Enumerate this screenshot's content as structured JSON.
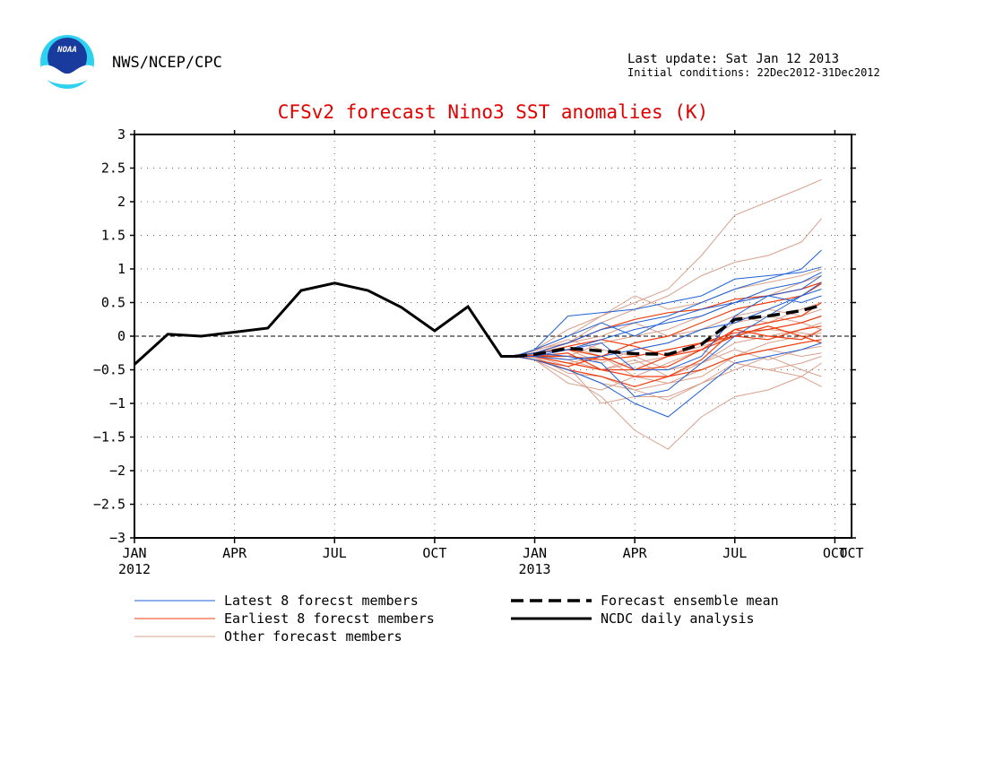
{
  "header": {
    "org": "NWS/NCEP/CPC",
    "logo_text": "NOAA",
    "last_update": "Last update: Sat Jan 12 2013",
    "initial_conditions": "Initial conditions: 22Dec2012-31Dec2012"
  },
  "chart_data": {
    "type": "line",
    "title": "CFSv2 forecast Nino3 SST anomalies (K)",
    "xlabel": "",
    "ylabel": "",
    "ylim": [
      -3,
      3
    ],
    "yticks": [
      "3",
      "2.5",
      "2",
      "1.5",
      "1",
      "0.5",
      "0",
      "-0.5",
      "-1",
      "-1.5",
      "-2",
      "-2.5",
      "-3"
    ],
    "xticks": [
      {
        "label": "JAN",
        "sub": "2012",
        "month": 0
      },
      {
        "label": "APR",
        "sub": "",
        "month": 3
      },
      {
        "label": "JUL",
        "sub": "",
        "month": 6
      },
      {
        "label": "OCT",
        "sub": "",
        "month": 9
      },
      {
        "label": "JAN",
        "sub": "2013",
        "month": 12
      },
      {
        "label": "APR",
        "sub": "",
        "month": 15
      },
      {
        "label": "JUL",
        "sub": "",
        "month": 18
      },
      {
        "label": "OCT",
        "sub": "",
        "month": 21
      }
    ],
    "xlim_months": [
      0,
      21.5
    ],
    "grid": true,
    "colors": {
      "latest": "#1f5fd6",
      "earliest": "#ee3e10",
      "other": "#d9a08c",
      "mean": "#000000",
      "analysis": "#000000",
      "title": "#e00000"
    },
    "legend": [
      {
        "label": "Latest 8 forecst members",
        "style": "latest"
      },
      {
        "label": "Earliest 8 forecst members",
        "style": "earliest"
      },
      {
        "label": "Other forecast members",
        "style": "other"
      },
      {
        "label": "Forecast ensemble mean",
        "style": "mean"
      },
      {
        "label": "NCDC daily analysis",
        "style": "analysis"
      }
    ],
    "forecast_months": [
      11.4,
      12,
      13,
      14,
      15,
      16,
      17,
      18,
      19,
      20,
      20.6
    ],
    "series": [
      {
        "name": "NCDC daily analysis",
        "months": [
          0,
          1,
          2,
          3,
          4,
          5,
          6,
          7,
          8,
          9,
          10,
          11,
          11.4
        ],
        "values": [
          -0.42,
          0.03,
          0.0,
          0.06,
          0.12,
          0.68,
          0.79,
          0.68,
          0.43,
          0.08,
          0.44,
          -0.3,
          -0.3
        ]
      },
      {
        "name": "Forecast ensemble mean",
        "values": [
          -0.3,
          -0.27,
          -0.18,
          -0.22,
          -0.26,
          -0.27,
          -0.12,
          0.25,
          0.3,
          0.38,
          0.46
        ]
      },
      {
        "group": "latest",
        "values": [
          -0.3,
          -0.2,
          0.3,
          0.35,
          0.4,
          0.5,
          0.6,
          0.85,
          0.9,
          0.95,
          1.03
        ]
      },
      {
        "group": "latest",
        "values": [
          -0.3,
          -0.25,
          -0.1,
          0.1,
          0.2,
          0.3,
          0.5,
          0.7,
          0.85,
          1.0,
          1.28
        ]
      },
      {
        "group": "latest",
        "values": [
          -0.3,
          -0.35,
          -0.5,
          -0.7,
          -1.0,
          -1.2,
          -0.8,
          -0.4,
          -0.3,
          -0.2,
          -0.1
        ]
      },
      {
        "group": "latest",
        "values": [
          -0.3,
          -0.3,
          -0.2,
          -0.1,
          -0.5,
          -0.5,
          -0.3,
          0.3,
          0.6,
          0.7,
          0.9
        ]
      },
      {
        "group": "latest",
        "values": [
          -0.3,
          -0.25,
          -0.3,
          -0.4,
          -0.9,
          -0.8,
          -0.4,
          0.0,
          0.3,
          0.6,
          0.8
        ]
      },
      {
        "group": "latest",
        "values": [
          -0.3,
          -0.2,
          0.0,
          0.2,
          0.0,
          0.25,
          0.4,
          0.5,
          0.6,
          0.5,
          0.6
        ]
      },
      {
        "group": "latest",
        "values": [
          -0.3,
          -0.3,
          -0.35,
          -0.3,
          -0.2,
          -0.1,
          0.1,
          0.2,
          0.4,
          0.6,
          0.7
        ]
      },
      {
        "group": "latest",
        "values": [
          -0.3,
          -0.25,
          -0.2,
          -0.05,
          0.1,
          0.2,
          0.3,
          0.5,
          0.7,
          0.8,
          0.95
        ]
      },
      {
        "group": "earliest",
        "values": [
          -0.3,
          -0.3,
          -0.4,
          -0.5,
          -0.5,
          -0.45,
          -0.2,
          0.1,
          0.2,
          0.3,
          0.5
        ]
      },
      {
        "group": "earliest",
        "values": [
          -0.3,
          -0.25,
          -0.1,
          0.1,
          0.25,
          0.35,
          0.4,
          0.55,
          0.6,
          0.7,
          0.8
        ]
      },
      {
        "group": "earliest",
        "values": [
          -0.3,
          -0.35,
          -0.45,
          -0.3,
          -0.5,
          -0.3,
          -0.1,
          0.0,
          -0.05,
          0.1,
          0.15
        ]
      },
      {
        "group": "earliest",
        "values": [
          -0.3,
          -0.3,
          -0.25,
          -0.5,
          -0.6,
          -0.6,
          -0.35,
          0.1,
          0.0,
          -0.05,
          0.1
        ]
      },
      {
        "group": "earliest",
        "values": [
          -0.3,
          -0.25,
          -0.2,
          -0.3,
          -0.1,
          0.0,
          0.2,
          0.4,
          0.5,
          0.6,
          0.78
        ]
      },
      {
        "group": "earliest",
        "values": [
          -0.3,
          -0.35,
          -0.5,
          -0.6,
          -0.75,
          -0.6,
          -0.5,
          -0.3,
          -0.2,
          -0.1,
          -0.05
        ]
      },
      {
        "group": "earliest",
        "values": [
          -0.3,
          -0.3,
          -0.3,
          -0.35,
          -0.3,
          -0.2,
          -0.1,
          0.05,
          0.1,
          0.2,
          0.3
        ]
      },
      {
        "group": "earliest",
        "values": [
          -0.3,
          -0.28,
          -0.15,
          -0.05,
          -0.15,
          -0.3,
          -0.2,
          0.0,
          0.15,
          0.0,
          -0.1
        ]
      },
      {
        "group": "other",
        "values": [
          -0.3,
          -0.2,
          0.0,
          0.3,
          0.5,
          0.7,
          1.2,
          1.8,
          2.0,
          2.2,
          2.33
        ]
      },
      {
        "group": "other",
        "values": [
          -0.3,
          -0.25,
          -0.1,
          0.2,
          0.4,
          0.6,
          0.9,
          1.1,
          1.2,
          1.4,
          1.75
        ]
      },
      {
        "group": "other",
        "values": [
          -0.3,
          -0.35,
          -0.6,
          -0.9,
          -1.4,
          -1.68,
          -1.2,
          -0.9,
          -0.8,
          -0.6,
          -0.4
        ]
      },
      {
        "group": "other",
        "values": [
          -0.3,
          -0.3,
          -0.45,
          -1.0,
          -0.9,
          -0.9,
          -0.7,
          -0.4,
          -0.5,
          -0.6,
          -0.75
        ]
      },
      {
        "group": "other",
        "values": [
          -0.3,
          -0.28,
          -0.35,
          -0.5,
          -0.4,
          -0.3,
          -0.1,
          0.2,
          0.3,
          0.2,
          0.1
        ]
      },
      {
        "group": "other",
        "values": [
          -0.3,
          -0.2,
          0.1,
          0.3,
          0.6,
          0.4,
          0.5,
          0.7,
          0.8,
          0.9,
          1.0
        ]
      },
      {
        "group": "other",
        "values": [
          -0.3,
          -0.32,
          -0.5,
          -0.7,
          -0.8,
          -0.95,
          -0.7,
          -0.5,
          -0.3,
          -0.5,
          -0.6
        ]
      },
      {
        "group": "other",
        "values": [
          -0.3,
          -0.25,
          -0.2,
          -0.4,
          -0.2,
          -0.1,
          0.1,
          0.3,
          0.2,
          0.4,
          0.5
        ]
      },
      {
        "group": "other",
        "values": [
          -0.3,
          -0.3,
          -0.4,
          -0.3,
          -0.6,
          -0.7,
          -0.6,
          -0.3,
          -0.2,
          -0.3,
          -0.25
        ]
      },
      {
        "group": "other",
        "values": [
          -0.3,
          -0.22,
          -0.05,
          -0.2,
          -0.3,
          -0.5,
          -0.4,
          -0.1,
          0.0,
          0.1,
          0.2
        ]
      },
      {
        "group": "other",
        "values": [
          -0.3,
          -0.35,
          -0.7,
          -0.8,
          -0.6,
          -0.4,
          -0.2,
          -0.4,
          -0.5,
          -0.4,
          -0.3
        ]
      },
      {
        "group": "other",
        "values": [
          -0.3,
          -0.27,
          -0.3,
          -0.1,
          0.0,
          0.1,
          0.3,
          0.5,
          0.6,
          0.8,
          0.9
        ]
      },
      {
        "group": "other",
        "values": [
          -0.3,
          -0.3,
          -0.55,
          -0.6,
          -0.8,
          -0.7,
          -0.5,
          -0.3,
          -0.1,
          0.0,
          0.05
        ]
      },
      {
        "group": "other",
        "values": [
          -0.3,
          -0.2,
          -0.1,
          0.0,
          0.2,
          0.0,
          0.1,
          0.3,
          0.4,
          0.3,
          0.4
        ]
      },
      {
        "group": "other",
        "values": [
          -0.3,
          -0.3,
          -0.4,
          -0.5,
          -0.35,
          -0.6,
          -0.4,
          -0.2,
          -0.35,
          -0.2,
          -0.15
        ]
      },
      {
        "group": "other",
        "values": [
          -0.3,
          -0.25,
          -0.15,
          -0.3,
          -0.5,
          -0.3,
          -0.15,
          0.0,
          0.1,
          0.05,
          0.0
        ]
      }
    ]
  }
}
